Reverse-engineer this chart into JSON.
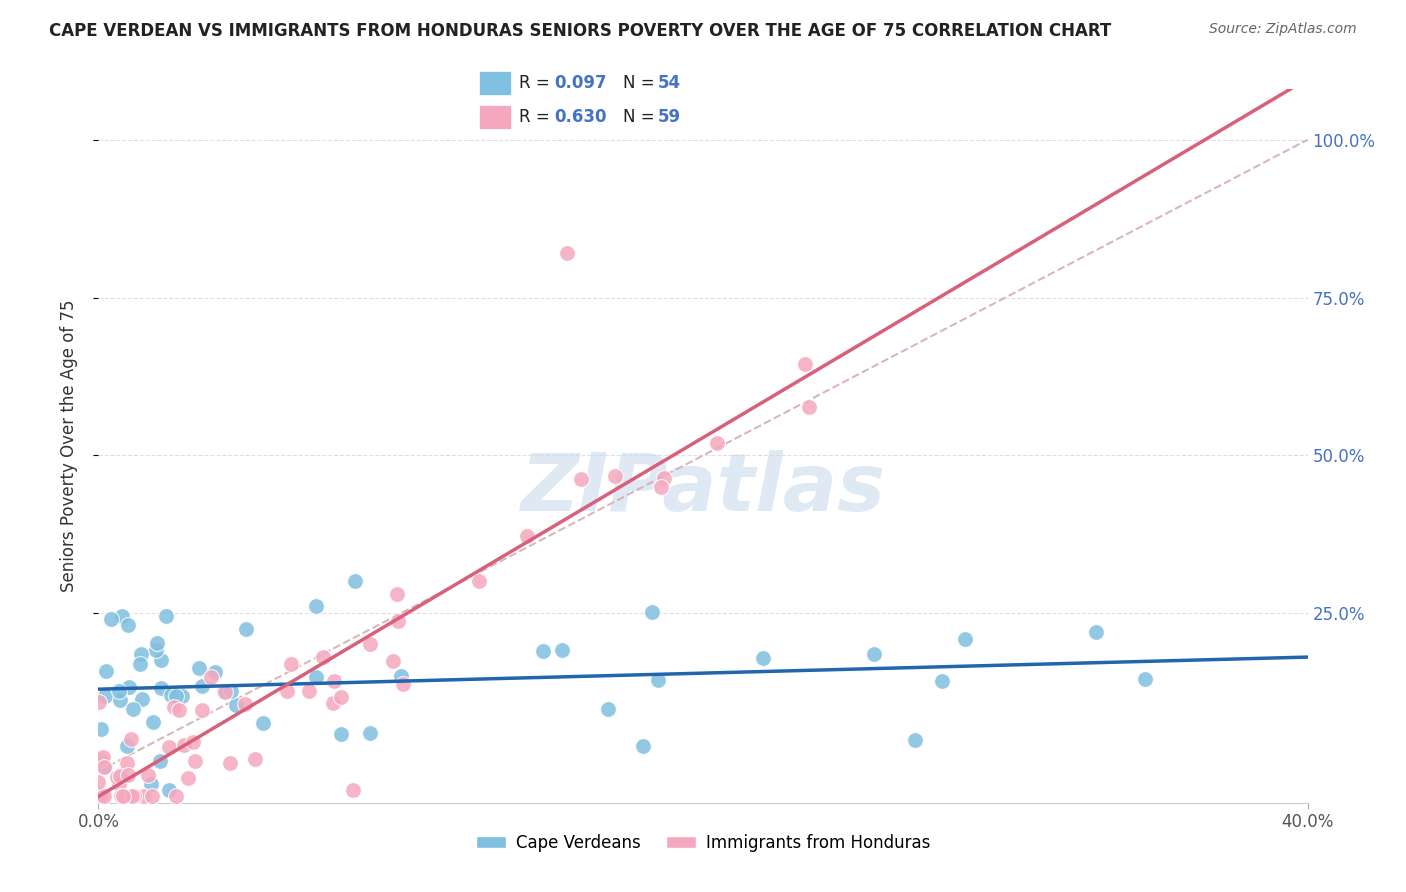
{
  "title": "CAPE VERDEAN VS IMMIGRANTS FROM HONDURAS SENIORS POVERTY OVER THE AGE OF 75 CORRELATION CHART",
  "source": "Source: ZipAtlas.com",
  "ylabel": "Seniors Poverty Over the Age of 75",
  "xlim": [
    0.0,
    0.4
  ],
  "ylim": [
    -0.05,
    1.08
  ],
  "xtick_positions": [
    0.0,
    0.4
  ],
  "xtick_labels": [
    "0.0%",
    "40.0%"
  ],
  "ytick_positions": [
    0.25,
    0.5,
    0.75,
    1.0
  ],
  "ytick_labels": [
    "25.0%",
    "50.0%",
    "75.0%",
    "100.0%"
  ],
  "watermark": "ZIPatlas",
  "blue_R": 0.097,
  "blue_N": 54,
  "pink_R": 0.63,
  "pink_N": 59,
  "blue_color": "#7fbfdf",
  "pink_color": "#f4a8be",
  "blue_line_color": "#2166ac",
  "pink_line_color": "#d9607a",
  "ref_line_color": "#d4b0b0",
  "legend_label_blue": "Cape Verdeans",
  "legend_label_pink": "Immigrants from Honduras",
  "title_color": "#222222",
  "source_color": "#666666",
  "axis_label_color": "#333333",
  "tick_color": "#4472c4",
  "grid_color": "#e0e0e0"
}
